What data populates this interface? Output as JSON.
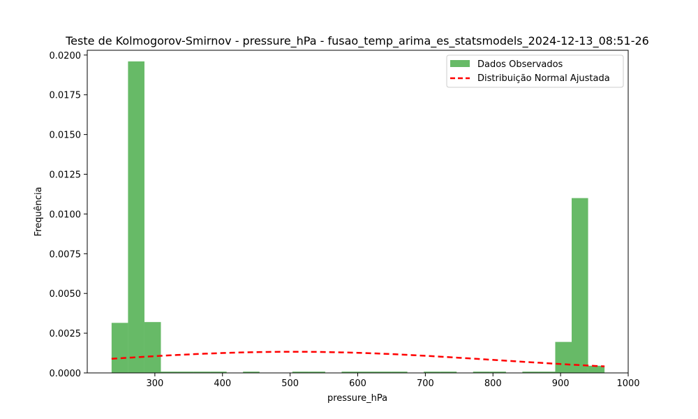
{
  "chart_data": {
    "type": "histogram",
    "title": "Teste de Kolmogorov-Smirnov - pressure_hPa - fusao_temp_arima_es_statsmodels_2024-12-13_08:51-26",
    "xlabel": "pressure_hPa",
    "ylabel": "Frequência",
    "xlim": [
      200,
      1000
    ],
    "ylim": [
      0,
      0.0203
    ],
    "xticks": [
      300,
      400,
      500,
      600,
      700,
      800,
      900,
      1000
    ],
    "yticks": [
      0.0,
      0.0025,
      0.005,
      0.0075,
      0.01,
      0.0125,
      0.015,
      0.0175,
      0.02
    ],
    "ytick_labels": [
      "0.0000",
      "0.0025",
      "0.0050",
      "0.0075",
      "0.0100",
      "0.0125",
      "0.0150",
      "0.0175",
      "0.0200"
    ],
    "bin_edges": [
      236.0,
      260.3,
      284.6,
      308.9,
      333.2,
      357.5,
      381.8,
      406.1,
      430.4,
      454.7,
      479.0,
      503.3,
      527.6,
      551.9,
      576.2,
      600.5,
      624.8,
      649.1,
      673.4,
      697.7,
      722.0,
      746.3,
      770.6,
      794.9,
      819.2,
      843.5,
      867.8,
      892.1,
      916.4,
      940.7,
      965.0
    ],
    "bar_values": [
      0.00315,
      0.0196,
      0.0032,
      8e-05,
      8e-05,
      8e-05,
      8e-05,
      2e-05,
      8e-05,
      2e-05,
      2e-05,
      8e-05,
      8e-05,
      2e-05,
      8e-05,
      8e-05,
      8e-05,
      8e-05,
      2e-05,
      8e-05,
      8e-05,
      2e-05,
      8e-05,
      8e-05,
      2e-05,
      8e-05,
      8e-05,
      0.00195,
      0.011,
      0.00045
    ],
    "bar_color": "#2ca02c",
    "normal_fit": {
      "mean": 505,
      "std": 300,
      "x_range": [
        236,
        965
      ],
      "color": "#ff0000"
    },
    "legend": {
      "position": "top-right",
      "entries": [
        "Dados Observados",
        "Distribuição Normal Ajustada"
      ]
    }
  }
}
